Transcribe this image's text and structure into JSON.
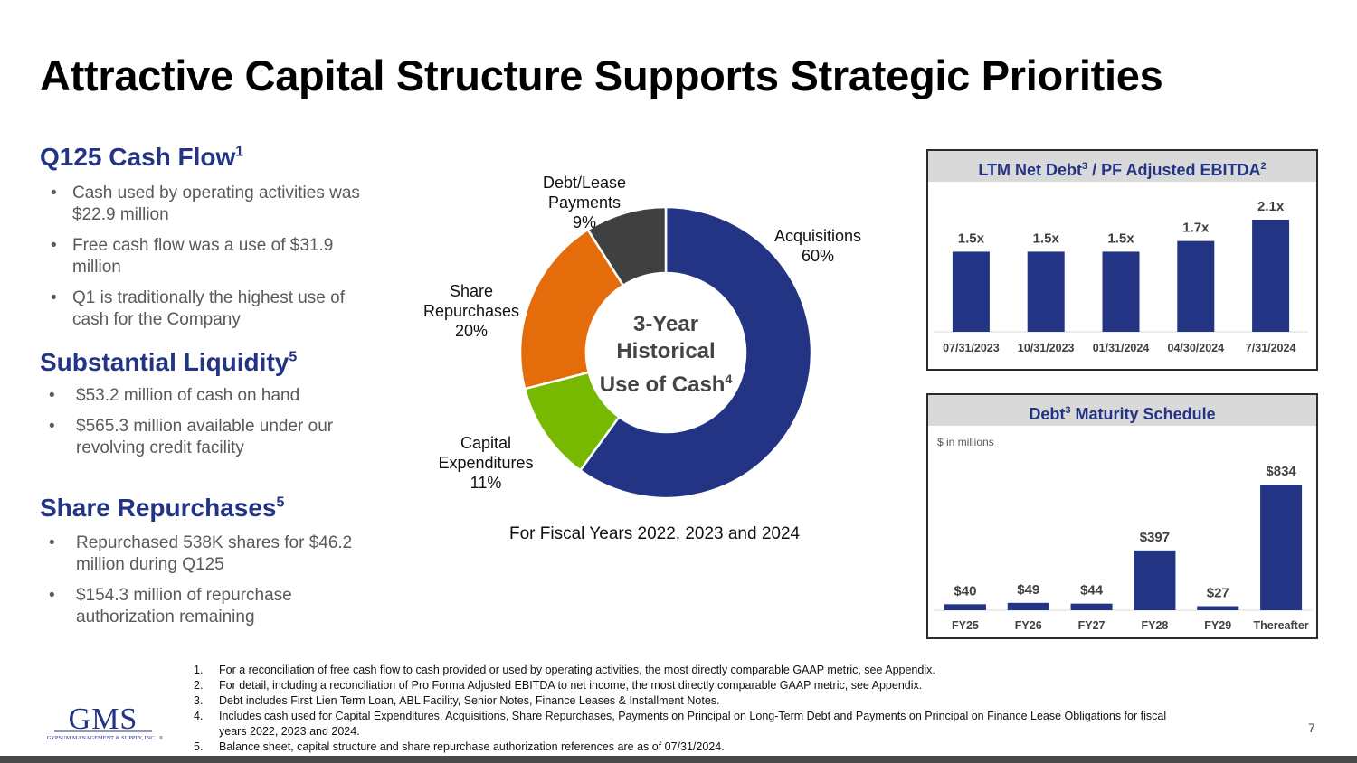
{
  "title": "Attractive Capital Structure Supports Strategic Priorities",
  "cash_flow": {
    "heading": "Q125 Cash Flow",
    "sup": "1",
    "bullets": [
      "Cash used by operating activities was $22.9 million",
      "Free cash flow was a use of $31.9 million",
      "Q1 is traditionally the highest use of cash for the Company"
    ]
  },
  "liquidity": {
    "heading": "Substantial Liquidity",
    "sup": "5",
    "bullets": [
      "$53.2 million of cash on hand",
      "$565.3 million available under our revolving credit facility"
    ]
  },
  "repurchases": {
    "heading": "Share Repurchases",
    "sup": "5",
    "bullets": [
      "Repurchased 538K shares for $46.2 million during Q125",
      "$154.3 million of repurchase authorization remaining"
    ]
  },
  "bullet_char": "•",
  "donut": {
    "center_line1": "3-Year",
    "center_line2": "Historical",
    "center_line3": "Use of Cash",
    "center_sup": "4",
    "caption": "For Fiscal Years 2022, 2023 and 2024"
  },
  "leverage_panel": {
    "title": "LTM Net Debt",
    "title_sup1": "3",
    "title_mid": " / PF Adjusted EBITDA",
    "title_sup2": "2"
  },
  "maturity_panel": {
    "title": "Debt",
    "title_sup": "3",
    "title_rest": " Maturity Schedule",
    "units": "$ in millions"
  },
  "chart_data": [
    {
      "type": "pie",
      "title": "3-Year Historical Use of Cash",
      "categories": [
        "Acquisitions",
        "Capital Expenditures",
        "Share Repurchases",
        "Debt/Lease Payments"
      ],
      "values": [
        60,
        11,
        20,
        9
      ],
      "labels": [
        "60%",
        "11%",
        "20%",
        "9%"
      ],
      "colors": [
        "#223483",
        "#76b900",
        "#e46c0a",
        "#404040"
      ],
      "donut": true
    },
    {
      "type": "bar",
      "title": "LTM Net Debt / PF Adjusted EBITDA",
      "categories": [
        "07/31/2023",
        "10/31/2023",
        "01/31/2024",
        "04/30/2024",
        "7/31/2024"
      ],
      "values": [
        1.5,
        1.5,
        1.5,
        1.7,
        2.1
      ],
      "labels": [
        "1.5x",
        "1.5x",
        "1.5x",
        "1.7x",
        "2.1x"
      ],
      "color": "#223483"
    },
    {
      "type": "bar",
      "title": "Debt Maturity Schedule",
      "ylabel": "$ in millions",
      "categories": [
        "FY25",
        "FY26",
        "FY27",
        "FY28",
        "FY29",
        "Thereafter"
      ],
      "values": [
        40,
        49,
        44,
        397,
        27,
        834
      ],
      "labels": [
        "$40",
        "$49",
        "$44",
        "$397",
        "$27",
        "$834"
      ],
      "color": "#223483"
    }
  ],
  "footnotes": [
    {
      "num": "1.",
      "text": "For a reconciliation of free cash flow to cash provided or used by operating activities, the most directly comparable GAAP metric, see Appendix."
    },
    {
      "num": "2.",
      "text": "For detail, including a reconciliation of Pro Forma Adjusted EBITDA to net income, the most directly comparable GAAP metric, see Appendix."
    },
    {
      "num": "3.",
      "text": "Debt includes First Lien Term Loan, ABL Facility, Senior Notes, Finance Leases & Installment Notes."
    },
    {
      "num": "4.",
      "text": "Includes cash used for Capital Expenditures, Acquisitions, Share Repurchases, Payments on Principal on Long-Term Debt and Payments on Principal on Finance Lease Obligations for fiscal years 2022, 2023 and 2024."
    },
    {
      "num": "5.",
      "text": "Balance sheet, capital structure and share repurchase authorization references are as of 07/31/2024."
    }
  ],
  "logo": {
    "text": "GMS",
    "subtext": "GYPSUM MANAGEMENT & SUPPLY, INC.",
    "mark": "®"
  },
  "page_number": "7"
}
